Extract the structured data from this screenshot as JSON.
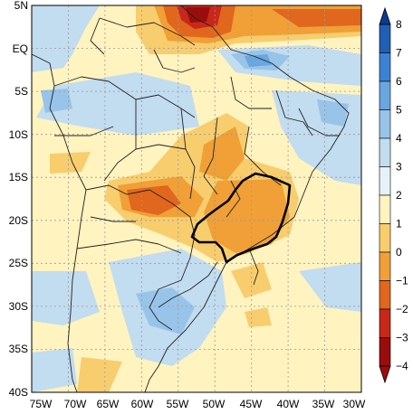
{
  "map": {
    "lat_ticks": [
      "5N",
      "EQ",
      "5S",
      "10S",
      "15S",
      "20S",
      "25S",
      "30S",
      "35S",
      "40S"
    ],
    "lon_ticks": [
      "75W",
      "70W",
      "65W",
      "60W",
      "55W",
      "50W",
      "45W",
      "40W",
      "35W",
      "30W"
    ],
    "extent": {
      "lon_min": -75,
      "lon_max": -30,
      "lat_min": -40,
      "lat_max": 5
    }
  },
  "colorbar": {
    "labels": [
      "8",
      "7",
      "6",
      "5",
      "4",
      "3",
      "2",
      "1",
      "0",
      "−1",
      "−2",
      "−3",
      "−4"
    ],
    "levels": [
      8,
      7,
      6,
      5,
      4,
      3,
      2,
      1,
      0,
      -1,
      -2,
      -3,
      -4
    ],
    "colors": [
      "#0b3c8c",
      "#1f5fb5",
      "#3c82d4",
      "#6aa6e0",
      "#98c4ea",
      "#c2dcf0",
      "#e6f2f8",
      "#fff3c0",
      "#f8cd6e",
      "#f0a036",
      "#e1661e",
      "#c8281a",
      "#9a0d0d"
    ]
  }
}
